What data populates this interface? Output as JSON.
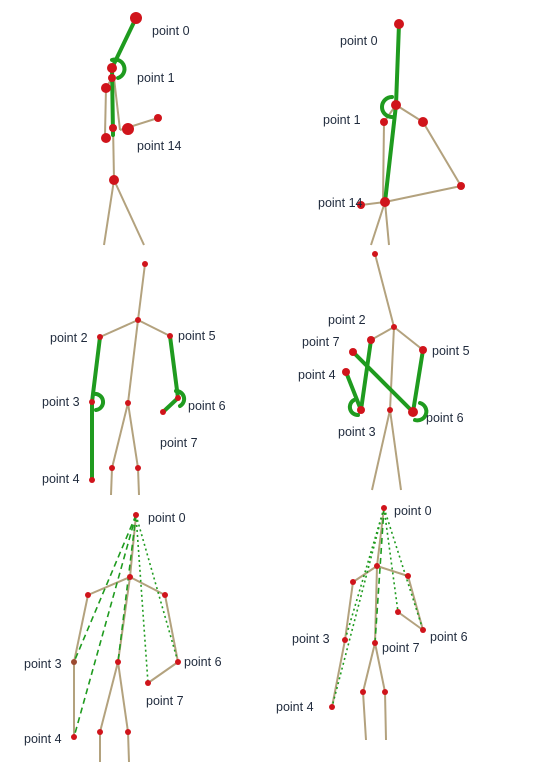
{
  "colors": {
    "bone": "#b3a27e",
    "highlight": "#1f9b1f",
    "joint": "#d0141b",
    "joint_dark": "#9c4a30",
    "label": "#1f2a3c"
  },
  "panels": [
    {
      "labels": [
        "point 0",
        "point 1",
        "point 14"
      ]
    },
    {
      "labels": [
        "point 0",
        "point 1",
        "point 14"
      ]
    },
    {
      "labels": [
        "point 2",
        "point 5",
        "point 3",
        "point 6",
        "point 7",
        "point 4"
      ]
    },
    {
      "labels": [
        "point 2",
        "point 7",
        "point 5",
        "point 4",
        "point 3",
        "point 6"
      ]
    },
    {
      "labels": [
        "point 0",
        "point 3",
        "point 6",
        "point 7",
        "point 4"
      ]
    },
    {
      "labels": [
        "point 0",
        "point 3",
        "point 7",
        "point 6",
        "point 4"
      ]
    }
  ]
}
